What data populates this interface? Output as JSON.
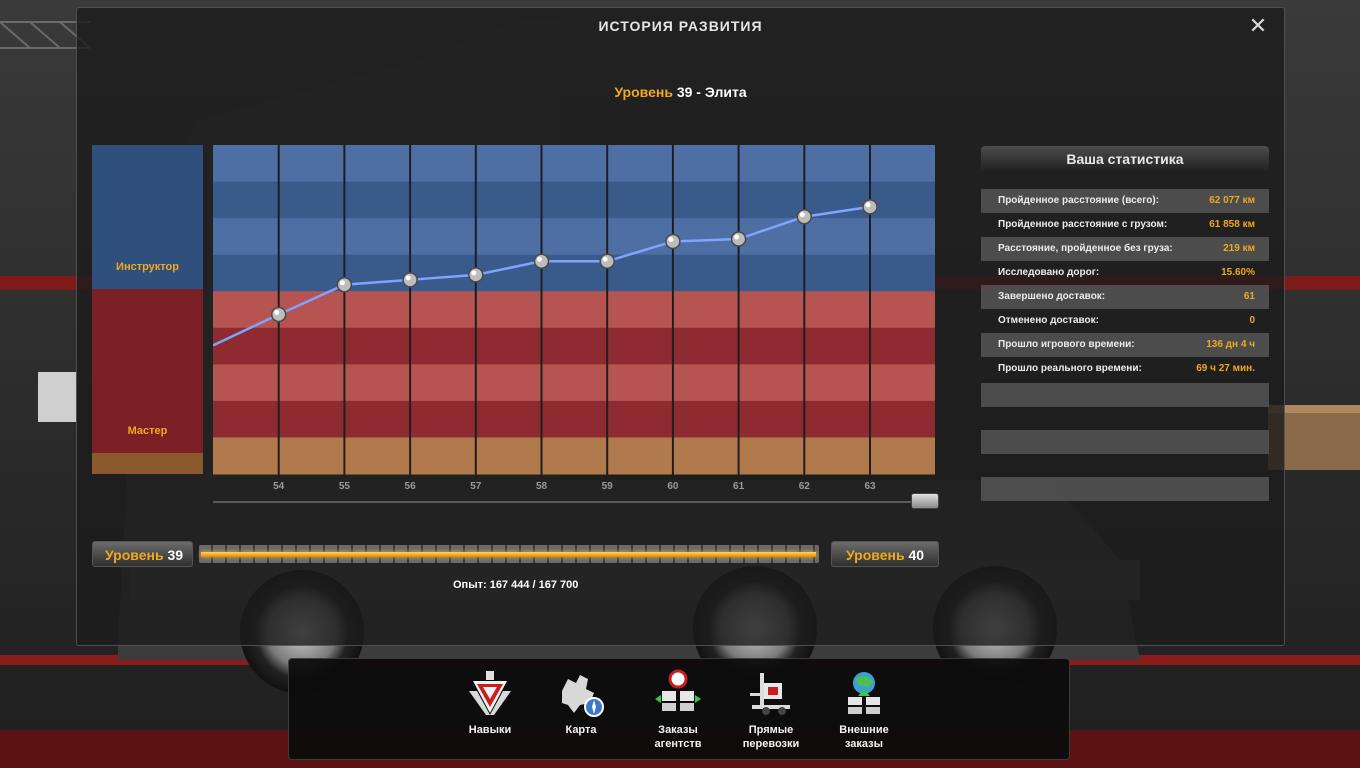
{
  "window": {
    "title": "ИСТОРИЯ РАЗВИТИЯ",
    "close_icon": "close-icon"
  },
  "level_title": {
    "label": "Уровень",
    "number": "39",
    "rank": "- Элита"
  },
  "ranks": {
    "instructor": "Инструктор",
    "master": "Мастер"
  },
  "chart_data": {
    "type": "line",
    "x": [
      "53",
      "54",
      "55",
      "56",
      "57",
      "58",
      "59",
      "60",
      "61",
      "62",
      "63"
    ],
    "x_tick_labels": [
      "54",
      "55",
      "56",
      "57",
      "58",
      "59",
      "60",
      "61",
      "62",
      "63"
    ],
    "series": [
      {
        "values": [
          52,
          64.5,
          76.5,
          78.5,
          80.5,
          86,
          86,
          94,
          95,
          104,
          108
        ]
      }
    ],
    "bands_top_to_bottom": [
      "#4d6fa3",
      "#385b8c",
      "#4d6fa3",
      "#385b8c",
      "#b65452",
      "#8e2b31",
      "#b65452",
      "#8e2b31",
      "#b07a4c"
    ],
    "ylim": [
      0,
      133
    ],
    "grid": true,
    "line_color": "#7fa3ff"
  },
  "stats": {
    "header": "Ваша статистика",
    "rows": [
      {
        "label": "Пройденное расстояние (всего):",
        "value": "62 077 км"
      },
      {
        "label": "Пройденное расстояние с грузом:",
        "value": "61 858 км"
      },
      {
        "label": "Расстояние, пройденное без груза:",
        "value": "219 км"
      },
      {
        "label": "Исследовано дорог:",
        "value": "15.60%"
      },
      {
        "label": "Завершено доставок:",
        "value": "61"
      },
      {
        "label": "Отменено доставок:",
        "value": "0"
      },
      {
        "label": "Прошло игрового времени:",
        "value": "136 дн 4 ч"
      },
      {
        "label": "Прошло реального времени:",
        "value": "69 ч 27 мин."
      }
    ]
  },
  "xp": {
    "current_label": "Уровень",
    "current_level": "39",
    "next_label": "Уровень",
    "next_level": "40",
    "text": "Опыт: 167 444 / 167 700",
    "progress": 0.9985
  },
  "menu": {
    "items": [
      {
        "label": "Навыки",
        "icon": "skills-icon"
      },
      {
        "label": "Карта",
        "icon": "map-icon"
      },
      {
        "label": "Заказы\nагентств",
        "icon": "agency-orders-icon"
      },
      {
        "label": "Прямые\nперевозки",
        "icon": "forklift-icon"
      },
      {
        "label": "Внешние\nзаказы",
        "icon": "external-orders-icon"
      }
    ]
  },
  "colors": {
    "accent": "#f0a81e",
    "chart_line": "#7fa3ff"
  }
}
